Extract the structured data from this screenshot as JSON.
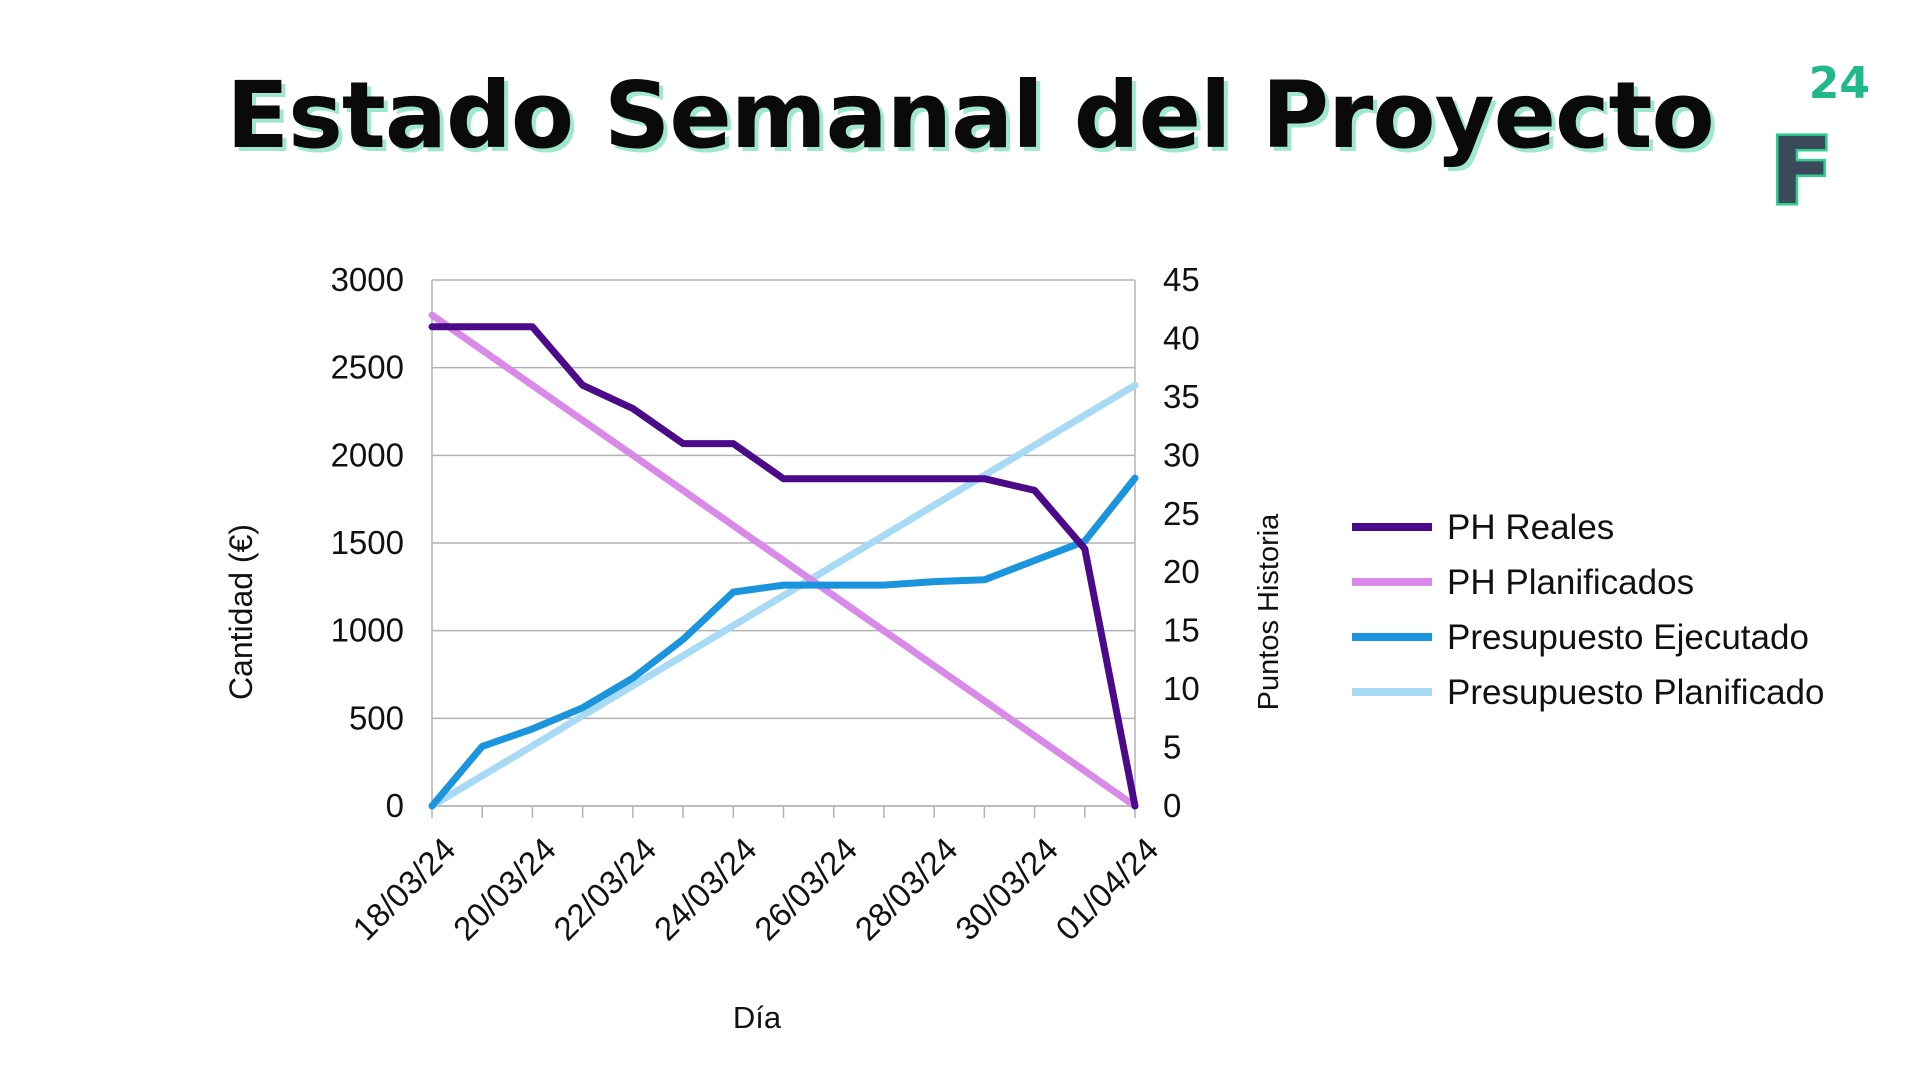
{
  "page": {
    "title": "Estado Semanal del Proyecto",
    "logo_number": "24",
    "logo_letter": "F"
  },
  "chart_data": {
    "type": "line",
    "title": "",
    "xlabel": "Día",
    "ylabel_left": "Cantidad (€)",
    "ylabel_right": "Puntos Historia",
    "ylim_left": [
      0,
      3000
    ],
    "ylim_right": [
      0,
      45
    ],
    "yticks_left": [
      0,
      500,
      1000,
      1500,
      2000,
      2500,
      3000
    ],
    "yticks_right": [
      0,
      5,
      10,
      15,
      20,
      25,
      30,
      35,
      40,
      45
    ],
    "grid": true,
    "legend_position": "right",
    "x": [
      "18/03/24",
      "19/03/24",
      "20/03/24",
      "21/03/24",
      "22/03/24",
      "23/03/24",
      "24/03/24",
      "25/03/24",
      "26/03/24",
      "27/03/24",
      "28/03/24",
      "29/03/24",
      "30/03/24",
      "31/03/24",
      "01/04/24"
    ],
    "x_tick_labels": [
      "18/03/24",
      "20/03/24",
      "22/03/24",
      "24/03/24",
      "26/03/24",
      "28/03/24",
      "30/03/24",
      "01/04/24"
    ],
    "series": [
      {
        "name": "PH Reales",
        "axis": "right",
        "color": "#4b0a8a",
        "values": [
          41,
          41,
          41,
          36,
          34,
          31,
          31,
          28,
          28,
          28,
          28,
          28,
          27,
          22,
          0
        ]
      },
      {
        "name": "PH Planificados",
        "axis": "right",
        "color": "#d98ae8",
        "values": [
          42,
          39,
          36,
          33,
          30,
          27,
          24,
          21,
          18,
          15,
          12,
          9,
          6,
          3,
          0
        ]
      },
      {
        "name": "Presupuesto Ejecutado",
        "axis": "left",
        "color": "#1a94dc",
        "values": [
          0,
          340,
          440,
          560,
          730,
          950,
          1220,
          1260,
          1260,
          1260,
          1280,
          1290,
          1400,
          1510,
          1870
        ]
      },
      {
        "name": "Presupuesto Planificado",
        "axis": "left",
        "color": "#a8daf5",
        "values": [
          0,
          172,
          343,
          515,
          686,
          857,
          1029,
          1200,
          1372,
          1543,
          1715,
          1886,
          2057,
          2229,
          2400
        ]
      }
    ]
  }
}
